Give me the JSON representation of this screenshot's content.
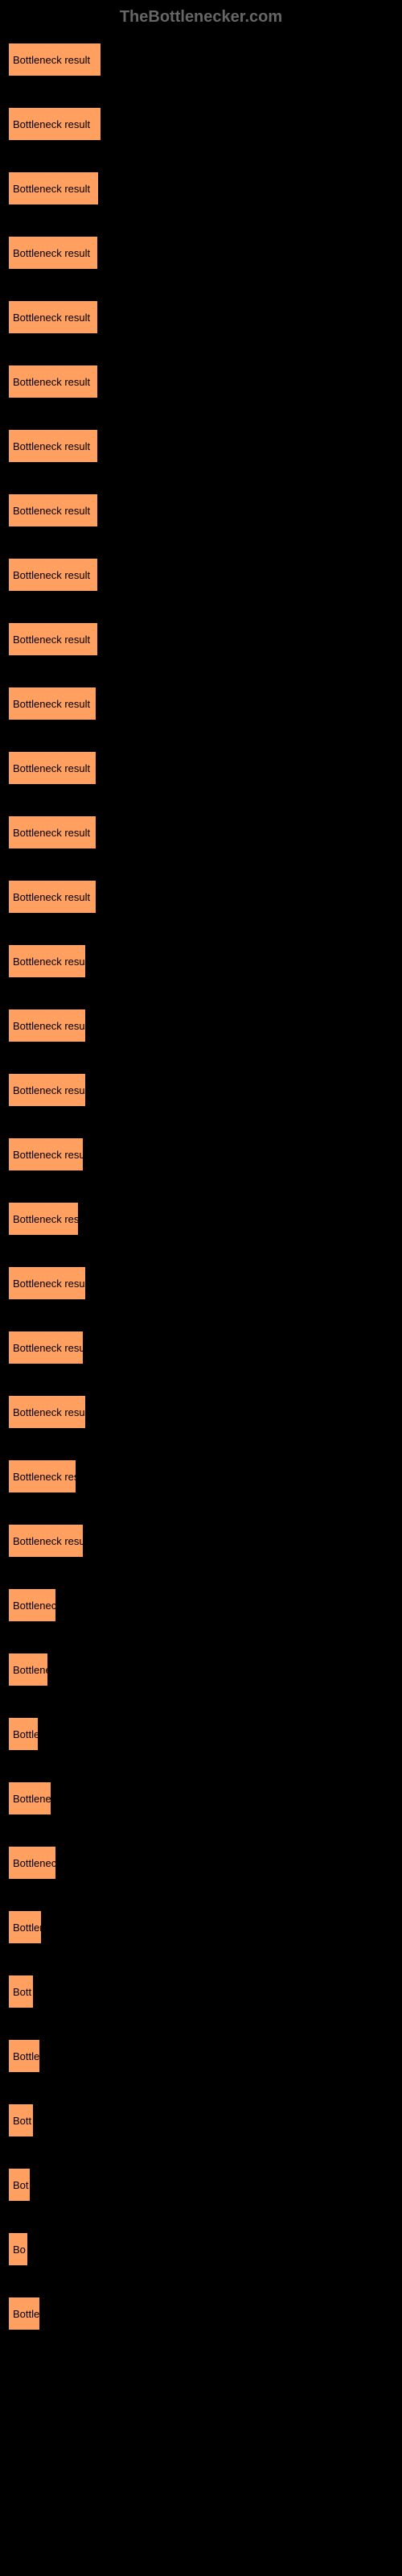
{
  "watermark": "TheBottlenecker.com",
  "chart": {
    "type": "bar",
    "background_color": "#000000",
    "bar_color": "#ffa060",
    "bar_border": "#000000",
    "text_color": "#000000",
    "label_fontsize": 13,
    "max_width": 480,
    "bars": [
      {
        "label": "Bottleneck result",
        "value": 116
      },
      {
        "label": "Bottleneck result",
        "value": 116
      },
      {
        "label": "Bottleneck result",
        "value": 113
      },
      {
        "label": "Bottleneck result",
        "value": 112
      },
      {
        "label": "Bottleneck result",
        "value": 112
      },
      {
        "label": "Bottleneck result",
        "value": 112
      },
      {
        "label": "Bottleneck result",
        "value": 112
      },
      {
        "label": "Bottleneck result",
        "value": 112
      },
      {
        "label": "Bottleneck result",
        "value": 112
      },
      {
        "label": "Bottleneck result",
        "value": 112
      },
      {
        "label": "Bottleneck result",
        "value": 110
      },
      {
        "label": "Bottleneck result",
        "value": 110
      },
      {
        "label": "Bottleneck result",
        "value": 110
      },
      {
        "label": "Bottleneck result",
        "value": 110
      },
      {
        "label": "Bottleneck result",
        "value": 97
      },
      {
        "label": "Bottleneck result",
        "value": 97
      },
      {
        "label": "Bottleneck result",
        "value": 97
      },
      {
        "label": "Bottleneck result",
        "value": 94
      },
      {
        "label": "Bottleneck res",
        "value": 88
      },
      {
        "label": "Bottleneck result",
        "value": 97
      },
      {
        "label": "Bottleneck result",
        "value": 94
      },
      {
        "label": "Bottleneck result",
        "value": 97
      },
      {
        "label": "Bottleneck res",
        "value": 85
      },
      {
        "label": "Bottleneck result",
        "value": 94
      },
      {
        "label": "Bottleneck",
        "value": 60
      },
      {
        "label": "Bottlener",
        "value": 50
      },
      {
        "label": "Bottle",
        "value": 38
      },
      {
        "label": "Bottlene",
        "value": 54
      },
      {
        "label": "Bottleneck",
        "value": 60
      },
      {
        "label": "Bottler",
        "value": 42
      },
      {
        "label": "Bott",
        "value": 32
      },
      {
        "label": "Bottle",
        "value": 40
      },
      {
        "label": "Bott",
        "value": 32
      },
      {
        "label": "Bot",
        "value": 28
      },
      {
        "label": "Bo",
        "value": 25
      },
      {
        "label": "Bottle",
        "value": 40
      }
    ]
  }
}
